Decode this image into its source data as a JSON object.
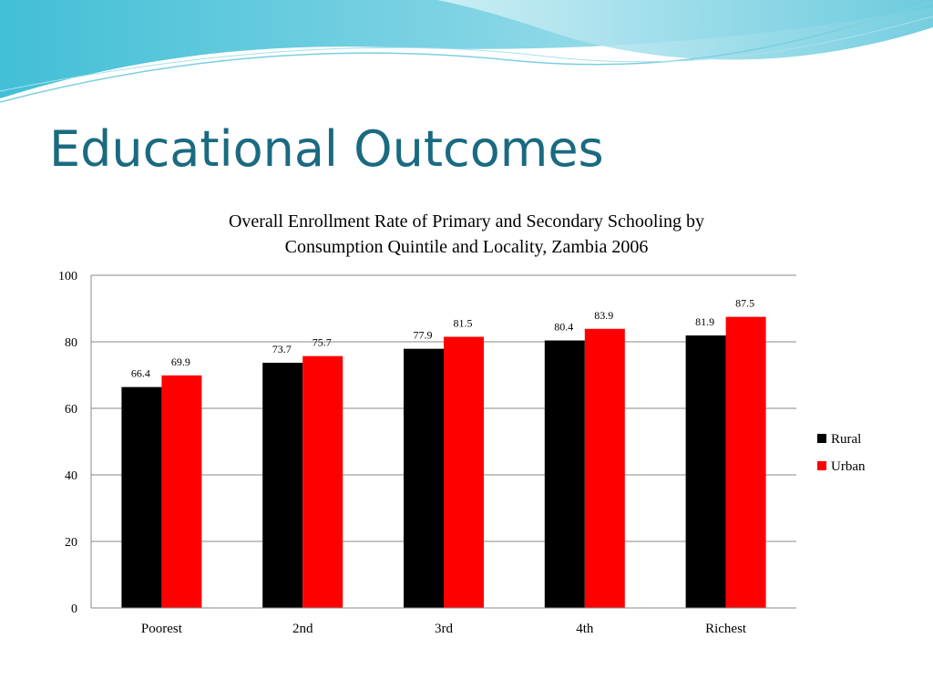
{
  "slide": {
    "title": "Educational Outcomes"
  },
  "colors": {
    "title": "#1a6a80",
    "rural": "#000000",
    "urban": "#ff0000",
    "wave_dark": "#3fb6cf",
    "wave_light": "#bfe8f2"
  },
  "chart_data": {
    "type": "bar",
    "title_line1": "Overall Enrollment Rate of Primary and Secondary Schooling by",
    "title_line2": "Consumption Quintile and Locality, Zambia 2006",
    "categories": [
      "Poorest",
      "2nd",
      "3rd",
      "4th",
      "Richest"
    ],
    "series": [
      {
        "name": "Rural",
        "values": [
          66.4,
          73.7,
          77.9,
          80.4,
          81.9
        ]
      },
      {
        "name": "Urban",
        "values": [
          69.9,
          75.7,
          81.5,
          83.9,
          87.5
        ]
      }
    ],
    "ylim": [
      0,
      100
    ],
    "yticks": [
      0,
      20,
      40,
      60,
      80,
      100
    ],
    "grid": true,
    "legend_position": "right"
  }
}
